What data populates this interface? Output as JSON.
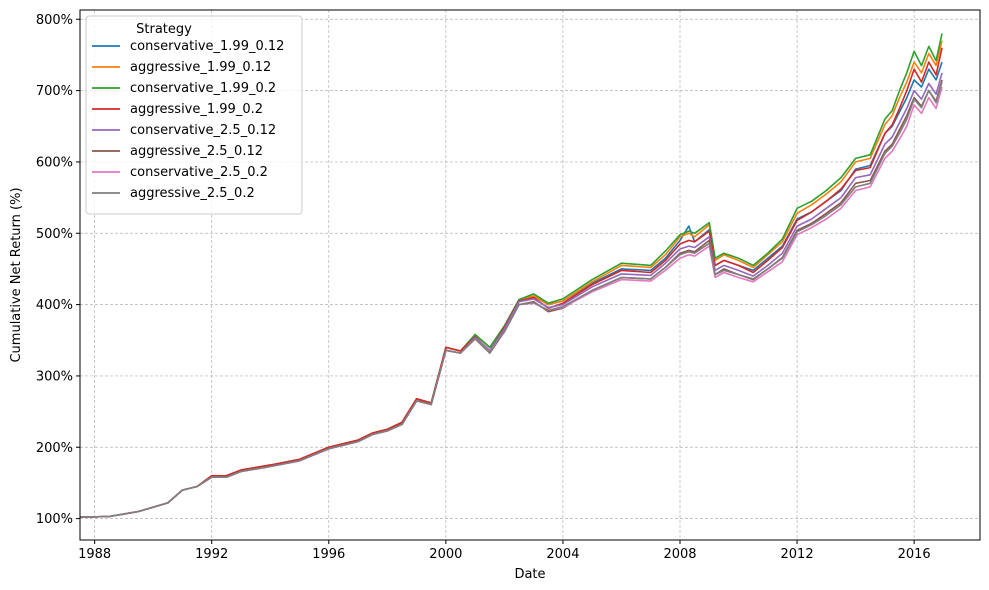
{
  "chart_data": {
    "type": "line",
    "xlabel": "Date",
    "ylabel": "Cumulative Net Return (%)",
    "xlim": [
      1987.5,
      2018.25
    ],
    "ylim": [
      70,
      813
    ],
    "x_ticks": [
      1988,
      1992,
      1996,
      2000,
      2004,
      2008,
      2012,
      2016
    ],
    "y_ticks": [
      100,
      200,
      300,
      400,
      500,
      600,
      700,
      800
    ],
    "y_tick_format": "{v}%",
    "grid": true,
    "legend": {
      "title": "Strategy",
      "position": "top-left"
    },
    "x": [
      1987.5,
      1988.5,
      1989.5,
      1990.5,
      1991.0,
      1991.5,
      1992.0,
      1992.5,
      1993.0,
      1994.0,
      1995.0,
      1996.0,
      1997.0,
      1997.5,
      1998.0,
      1998.5,
      1999.0,
      1999.5,
      2000.0,
      2000.5,
      2001.0,
      2001.5,
      2002.0,
      2002.5,
      2003.0,
      2003.5,
      2004.0,
      2005.0,
      2006.0,
      2007.0,
      2007.5,
      2008.0,
      2008.3,
      2008.5,
      2009.0,
      2009.2,
      2009.5,
      2010.0,
      2010.5,
      2011.0,
      2011.5,
      2012.0,
      2012.5,
      2013.0,
      2013.5,
      2014.0,
      2014.5,
      2015.0,
      2015.25,
      2015.5,
      2015.75,
      2016.0,
      2016.25,
      2016.5,
      2016.75,
      2016.95
    ],
    "series": [
      {
        "name": "conservative_1.99_0.12",
        "color": "#1f77b4",
        "values": [
          102,
          103,
          110,
          122,
          140,
          145,
          160,
          160,
          168,
          175,
          183,
          200,
          210,
          220,
          225,
          235,
          268,
          262,
          340,
          335,
          358,
          340,
          370,
          407,
          412,
          400,
          405,
          430,
          450,
          448,
          465,
          490,
          510,
          488,
          505,
          455,
          462,
          455,
          448,
          465,
          482,
          520,
          530,
          545,
          560,
          590,
          595,
          640,
          650,
          670,
          690,
          715,
          705,
          730,
          715,
          740
        ]
      },
      {
        "name": "aggressive_1.99_0.12",
        "color": "#ff7f0e",
        "values": [
          102,
          103,
          110,
          122,
          140,
          145,
          160,
          160,
          168,
          175,
          183,
          200,
          210,
          220,
          225,
          235,
          268,
          262,
          340,
          335,
          358,
          340,
          370,
          407,
          412,
          400,
          405,
          432,
          455,
          452,
          470,
          495,
          500,
          495,
          512,
          462,
          470,
          462,
          452,
          470,
          488,
          528,
          540,
          555,
          572,
          600,
          605,
          652,
          665,
          690,
          712,
          740,
          725,
          752,
          735,
          770
        ]
      },
      {
        "name": "conservative_1.99_0.2",
        "color": "#2ca02c",
        "values": [
          102,
          103,
          110,
          122,
          140,
          145,
          160,
          160,
          168,
          175,
          183,
          200,
          210,
          220,
          225,
          235,
          268,
          262,
          340,
          335,
          358,
          340,
          370,
          407,
          415,
          402,
          408,
          435,
          458,
          455,
          475,
          498,
          503,
          500,
          515,
          465,
          472,
          465,
          455,
          472,
          492,
          535,
          545,
          560,
          578,
          605,
          610,
          660,
          672,
          700,
          725,
          755,
          735,
          762,
          742,
          780
        ]
      },
      {
        "name": "aggressive_1.99_0.2",
        "color": "#d62728",
        "values": [
          102,
          103,
          110,
          122,
          140,
          145,
          160,
          160,
          168,
          175,
          183,
          200,
          210,
          220,
          225,
          235,
          268,
          262,
          340,
          335,
          355,
          335,
          368,
          405,
          410,
          395,
          402,
          428,
          448,
          445,
          462,
          485,
          490,
          488,
          503,
          455,
          462,
          455,
          445,
          462,
          480,
          518,
          530,
          545,
          562,
          588,
          592,
          640,
          652,
          675,
          700,
          730,
          712,
          740,
          722,
          760
        ]
      },
      {
        "name": "conservative_2.5_0.12",
        "color": "#9467bd",
        "values": [
          102,
          103,
          110,
          122,
          140,
          145,
          158,
          158,
          166,
          173,
          181,
          198,
          208,
          218,
          223,
          232,
          265,
          260,
          336,
          332,
          354,
          336,
          366,
          404,
          408,
          396,
          400,
          425,
          443,
          441,
          458,
          478,
          482,
          480,
          495,
          448,
          455,
          448,
          440,
          455,
          472,
          510,
          520,
          535,
          550,
          578,
          582,
          625,
          635,
          655,
          675,
          700,
          688,
          710,
          695,
          725
        ]
      },
      {
        "name": "aggressive_2.5_0.12",
        "color": "#8c564b",
        "values": [
          102,
          103,
          110,
          122,
          140,
          145,
          158,
          158,
          166,
          173,
          181,
          198,
          208,
          218,
          223,
          232,
          265,
          260,
          336,
          332,
          352,
          332,
          362,
          400,
          404,
          390,
          395,
          420,
          438,
          436,
          452,
          472,
          476,
          474,
          490,
          442,
          450,
          442,
          435,
          450,
          466,
          504,
          514,
          528,
          543,
          570,
          574,
          615,
          625,
          645,
          665,
          690,
          678,
          700,
          685,
          715
        ]
      },
      {
        "name": "conservative_2.5_0.2",
        "color": "#e377c2",
        "values": [
          102,
          103,
          110,
          122,
          140,
          145,
          158,
          158,
          166,
          173,
          181,
          198,
          208,
          218,
          223,
          232,
          265,
          260,
          336,
          332,
          352,
          334,
          362,
          400,
          402,
          392,
          396,
          418,
          435,
          433,
          448,
          465,
          470,
          468,
          482,
          438,
          445,
          438,
          432,
          446,
          460,
          498,
          508,
          520,
          535,
          560,
          565,
          605,
          615,
          632,
          650,
          680,
          668,
          690,
          675,
          705
        ]
      },
      {
        "name": "aggressive_2.5_0.2",
        "color": "#7f7f7f",
        "values": [
          102,
          103,
          110,
          122,
          140,
          145,
          158,
          158,
          166,
          173,
          181,
          198,
          208,
          218,
          223,
          232,
          265,
          260,
          336,
          332,
          352,
          333,
          362,
          400,
          403,
          392,
          397,
          420,
          438,
          436,
          452,
          470,
          474,
          472,
          486,
          442,
          448,
          442,
          436,
          450,
          465,
          502,
          512,
          525,
          540,
          565,
          570,
          612,
          622,
          640,
          660,
          688,
          676,
          700,
          683,
          712
        ]
      }
    ]
  }
}
